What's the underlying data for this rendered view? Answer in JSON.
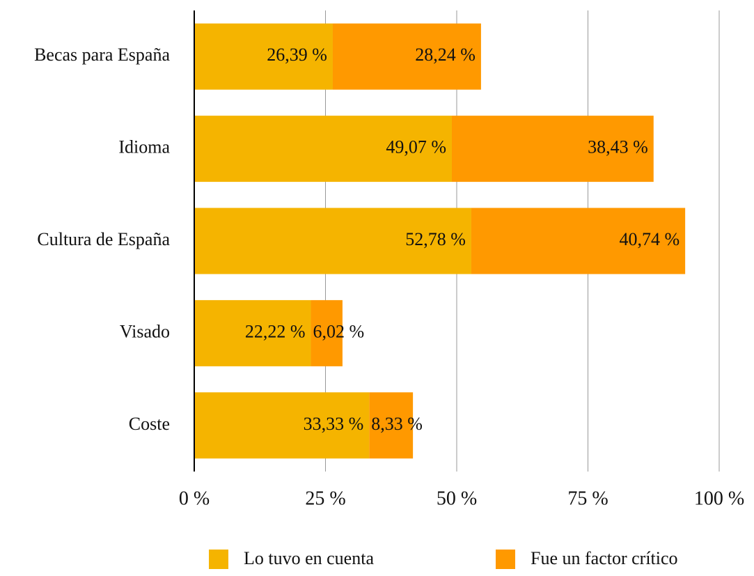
{
  "chart_data": {
    "type": "stacked_bar_horizontal",
    "categories": [
      "Becas para España",
      "Idioma",
      "Cultura de España",
      "Visado",
      "Coste"
    ],
    "series": [
      {
        "name": "Lo tuvo en cuenta",
        "color": "#f5b400",
        "values": [
          26.39,
          49.07,
          52.78,
          22.22,
          33.33
        ],
        "value_labels": [
          "26,39 %",
          "49,07 %",
          "52,78 %",
          "22,22 %",
          "33,33 %"
        ]
      },
      {
        "name": "Fue un factor crítico",
        "color": "#ff9900",
        "values": [
          28.24,
          38.43,
          40.74,
          6.02,
          8.33
        ],
        "value_labels": [
          "28,24 %",
          "38,43 %",
          "40,74 %",
          "6,02 %",
          "8,33 %"
        ]
      }
    ],
    "xlim": [
      0,
      100
    ],
    "xticks": [
      {
        "value": 0,
        "label": "0 %"
      },
      {
        "value": 25,
        "label": "25 %"
      },
      {
        "value": 50,
        "label": "50 %"
      },
      {
        "value": 75,
        "label": "75 %"
      },
      {
        "value": 100,
        "label": "100 %"
      }
    ],
    "grid": true,
    "legend": "bottom"
  }
}
